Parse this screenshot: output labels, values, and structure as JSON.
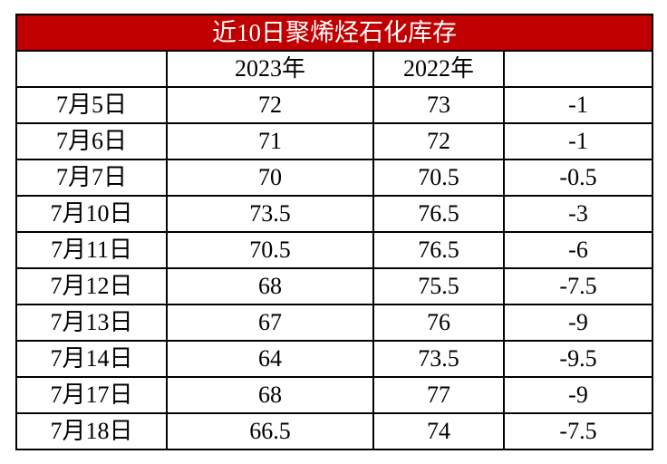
{
  "table": {
    "title": "近10日聚烯烃石化库存",
    "columns": [
      "2023年",
      "2022年"
    ],
    "rows": [
      [
        "7月5日",
        72,
        73,
        -1
      ],
      [
        "7月6日",
        71,
        72,
        -1
      ],
      [
        "7月7日",
        70,
        70.5,
        -0.5
      ],
      [
        "7月10日",
        73.5,
        76.5,
        -3
      ],
      [
        "7月11日",
        70.5,
        76.5,
        -6
      ],
      [
        "7月12日",
        68,
        75.5,
        -7.5
      ],
      [
        "7月13日",
        67,
        76,
        -9
      ],
      [
        "7月14日",
        64,
        73.5,
        -9.5
      ],
      [
        "7月17日",
        68,
        77,
        -9
      ],
      [
        "7月18日",
        66.5,
        74,
        -7.5
      ]
    ]
  }
}
